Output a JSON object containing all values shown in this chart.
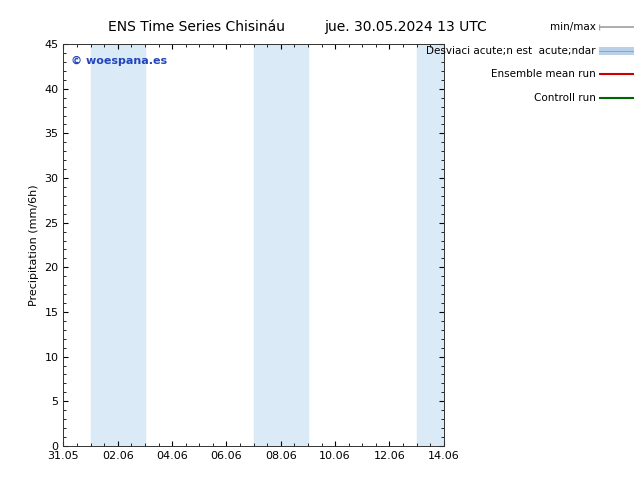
{
  "title": "ENS Time Series Chisináu",
  "title_date": "jue. 30.05.2024 13 UTC",
  "ylabel": "Precipitation (mm/6h)",
  "watermark": "© woespana.es",
  "ylim": [
    0,
    45
  ],
  "yticks": [
    0,
    5,
    10,
    15,
    20,
    25,
    30,
    35,
    40,
    45
  ],
  "xlim": [
    0,
    14
  ],
  "xtick_labels": [
    "31.05",
    "02.06",
    "04.06",
    "06.06",
    "08.06",
    "10.06",
    "12.06",
    "14.06"
  ],
  "xtick_positions": [
    0,
    2,
    4,
    6,
    8,
    10,
    12,
    14
  ],
  "shade_bands": [
    {
      "start": 1.0,
      "end": 3.0
    },
    {
      "start": 7.0,
      "end": 9.0
    },
    {
      "start": 13.0,
      "end": 14.0
    }
  ],
  "shade_color": "#daeaf7",
  "background_color": "#ffffff",
  "title_fontsize": 10,
  "axis_fontsize": 8,
  "tick_fontsize": 8,
  "watermark_color": "#2244bb",
  "legend_labels": [
    "min/max",
    "Desviaci acute;n est  acute;ndar",
    "Ensemble mean run",
    "Controll run"
  ],
  "legend_colors": [
    "#a0a0a0",
    "#b8d0e8",
    "#cc0000",
    "#006600"
  ]
}
